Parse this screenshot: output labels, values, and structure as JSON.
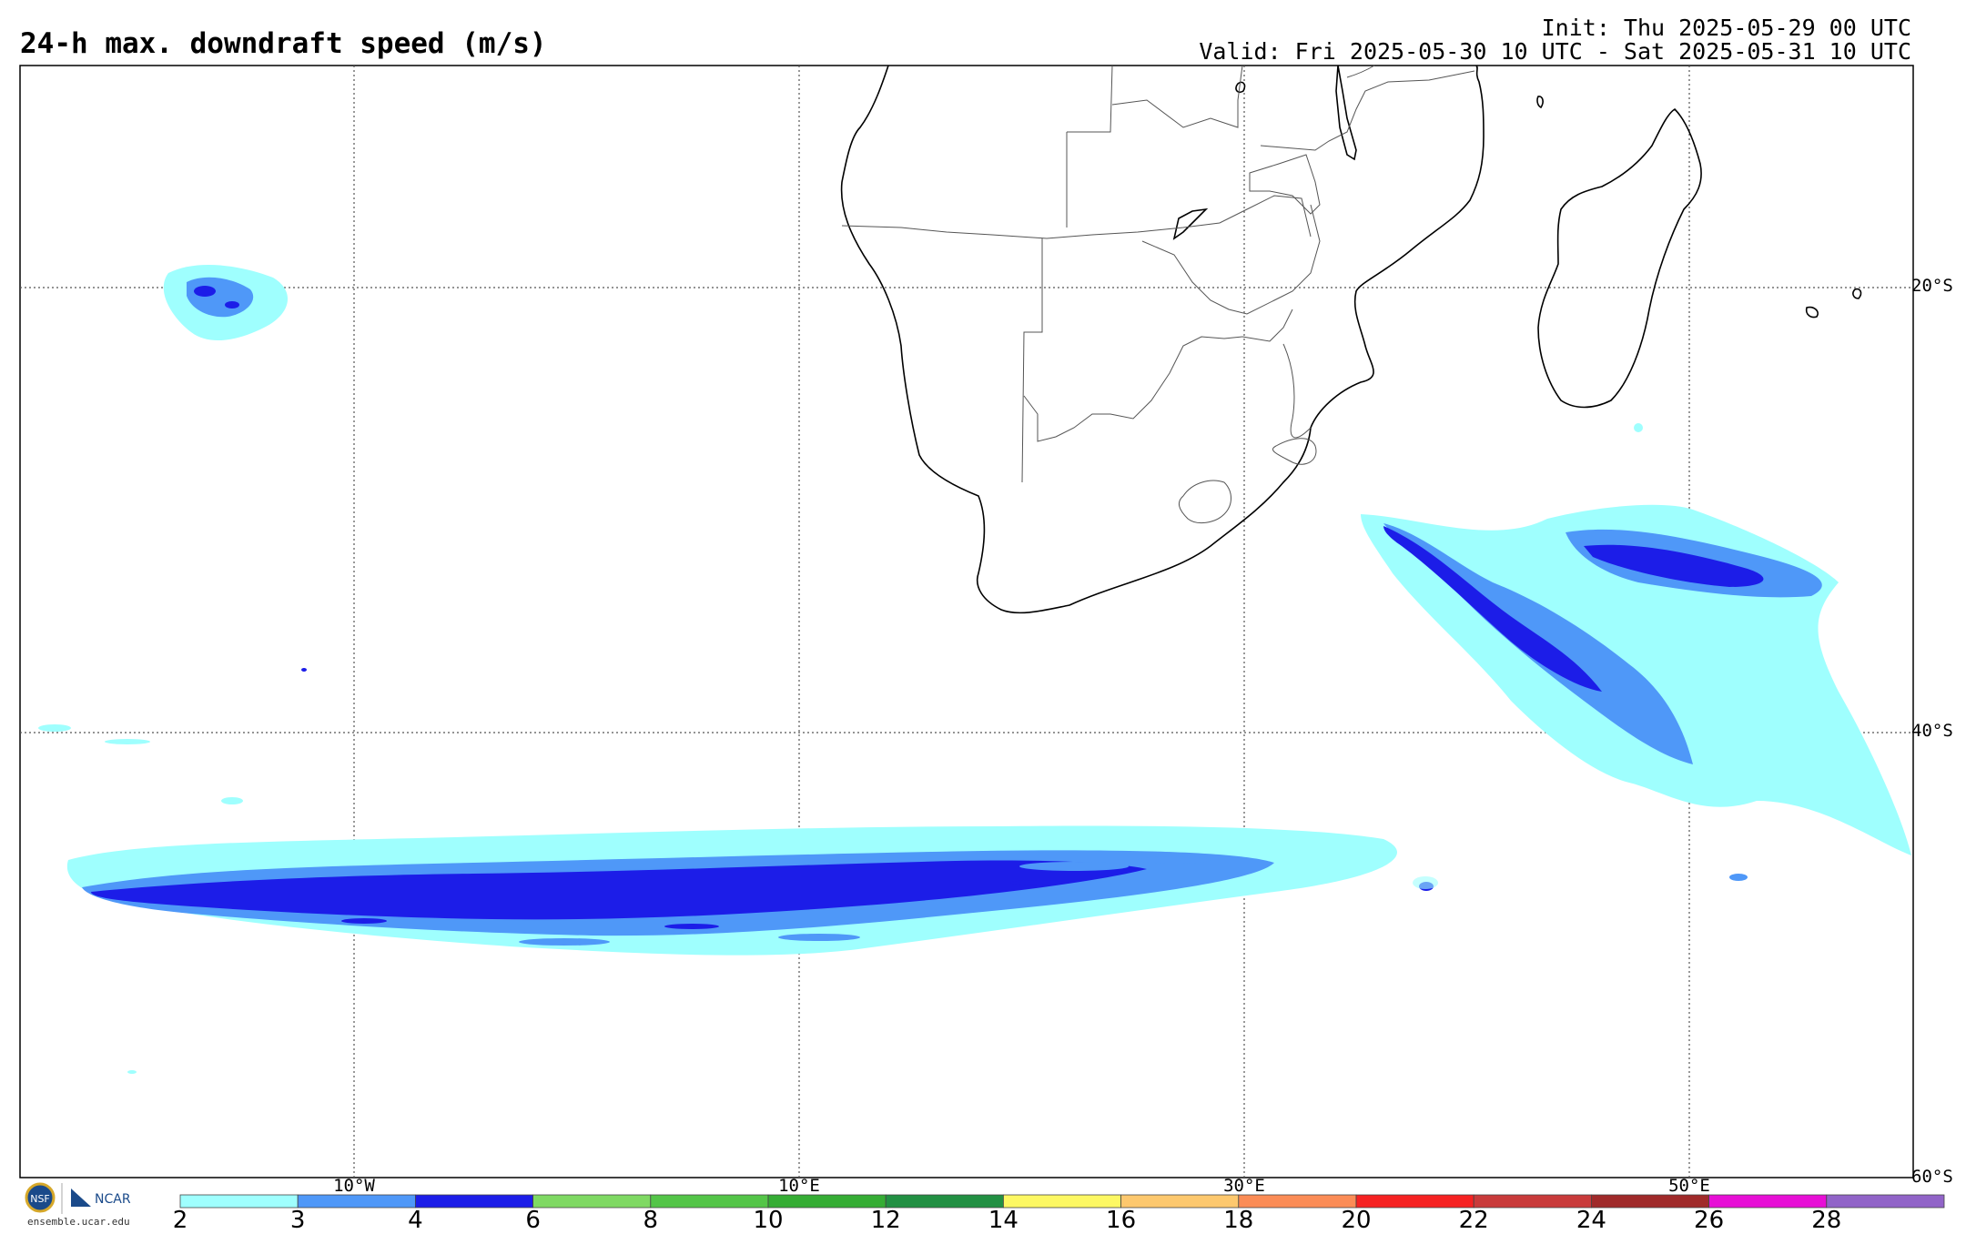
{
  "title": "24-h max. downdraft speed (m/s)",
  "init_line": "Init: Thu 2025-05-29 00 UTC",
  "valid_line": "Valid: Fri 2025-05-30 10 UTC - Sat 2025-05-31 10 UTC",
  "lat_labels": [
    "20°S",
    "40°S",
    "60°S"
  ],
  "lon_labels": [
    "10°W",
    "10°E",
    "30°E",
    "50°E"
  ],
  "colorbar": {
    "ticks": [
      "2",
      "3",
      "4",
      "6",
      "8",
      "10",
      "12",
      "14",
      "16",
      "18",
      "20",
      "22",
      "24",
      "26",
      "28"
    ],
    "colors": [
      "#9ffffe",
      "#4f98f8",
      "#1c1de8",
      "#7fd963",
      "#54c548",
      "#35ad34",
      "#229043",
      "#fdf863",
      "#fdc86e",
      "#fb8c56",
      "#f62222",
      "#c93b3b",
      "#a02a2a",
      "#e70fd6",
      "#9164c8"
    ]
  },
  "logos": {
    "nsf": "NSF",
    "ncar": "NCAR",
    "url": "ensemble.ucar.edu"
  },
  "map": {
    "icons": [
      "nsf-logo-icon",
      "ncar-logo-icon"
    ]
  }
}
